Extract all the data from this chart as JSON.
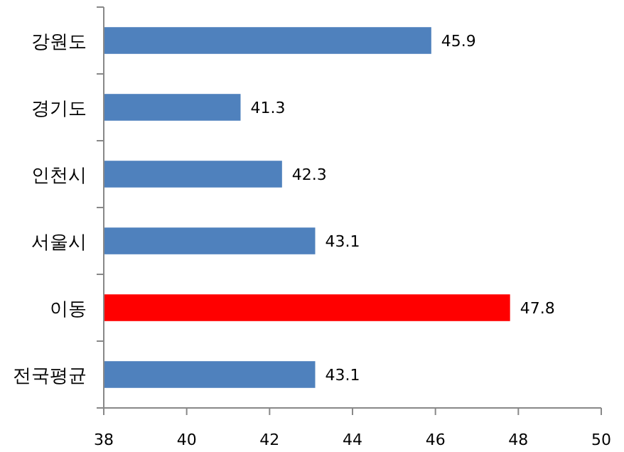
{
  "chart_data": {
    "type": "bar",
    "orientation": "horizontal",
    "categories": [
      "강원도",
      "경기도",
      "인천시",
      "서울시",
      "이동",
      "전국평균"
    ],
    "values": [
      45.9,
      41.3,
      42.3,
      43.1,
      47.8,
      43.1
    ],
    "colors": [
      "#4f81bd",
      "#4f81bd",
      "#4f81bd",
      "#4f81bd",
      "#ff0000",
      "#4f81bd"
    ],
    "xlim": [
      38,
      50
    ],
    "xticks": [
      38,
      40,
      42,
      44,
      46,
      48,
      50
    ],
    "data_labels": true
  }
}
